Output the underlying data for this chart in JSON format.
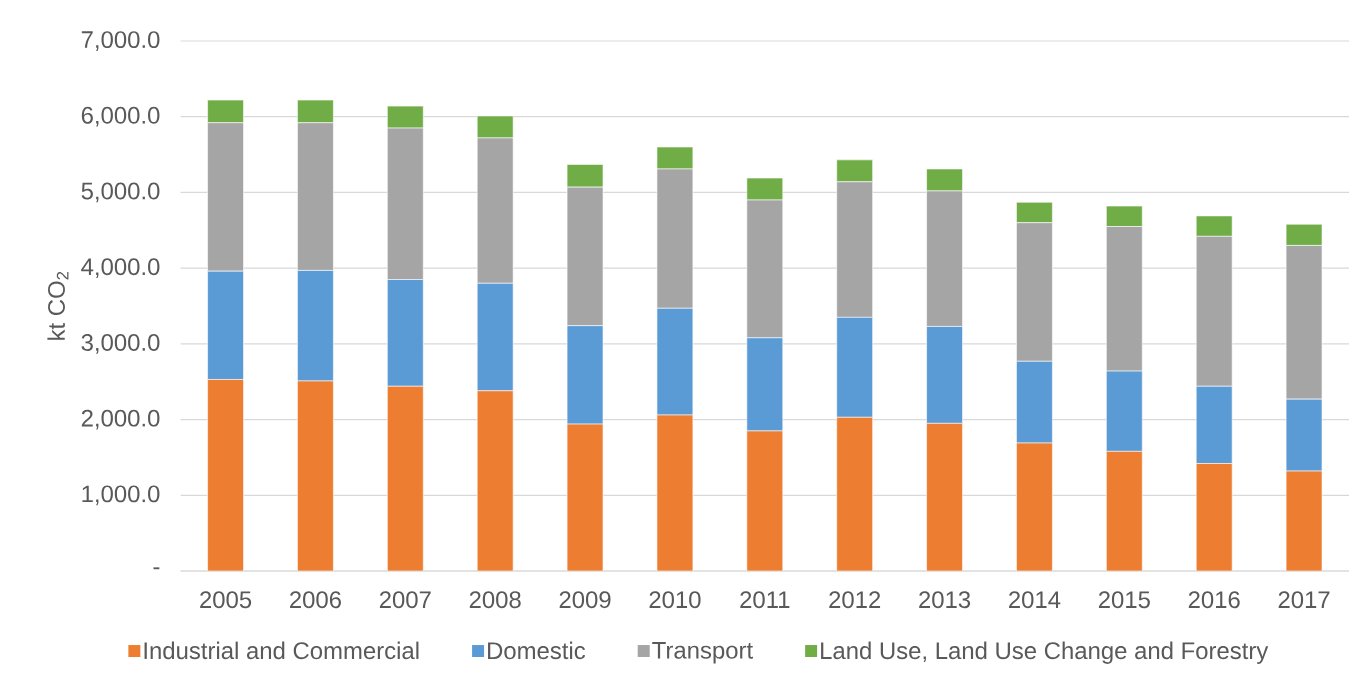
{
  "chart_data": {
    "type": "bar",
    "stacked": true,
    "ylabel": "kt CO$_{2}$",
    "categories": [
      "2005",
      "2006",
      "2007",
      "2008",
      "2009",
      "2010",
      "2011",
      "2012",
      "2013",
      "2014",
      "2015",
      "2016",
      "2017"
    ],
    "series": [
      {
        "name": "Industrial and Commercial",
        "color": "#ed7d31",
        "values": [
          2530,
          2510,
          2440,
          2380,
          1940,
          2060,
          1850,
          2030,
          1950,
          1690,
          1580,
          1420,
          1320
        ]
      },
      {
        "name": "Domestic",
        "color": "#5b9bd5",
        "values": [
          1430,
          1460,
          1410,
          1420,
          1300,
          1410,
          1230,
          1320,
          1280,
          1080,
          1060,
          1020,
          950
        ]
      },
      {
        "name": "Transport",
        "color": "#a5a5a5",
        "values": [
          1960,
          1950,
          2000,
          1920,
          1830,
          1840,
          1820,
          1790,
          1790,
          1830,
          1910,
          1980,
          2030
        ]
      },
      {
        "name": "Land Use, Land Use Change and Forestry",
        "color": "#70ad47",
        "values": [
          300,
          300,
          290,
          290,
          300,
          290,
          290,
          290,
          290,
          270,
          270,
          270,
          280
        ]
      }
    ],
    "ylim": [
      0,
      7000
    ],
    "yticks": [
      {
        "value": 0,
        "label": "-"
      },
      {
        "value": 1000,
        "label": "1,000.0"
      },
      {
        "value": 2000,
        "label": "2,000.0"
      },
      {
        "value": 3000,
        "label": "3,000.0"
      },
      {
        "value": 4000,
        "label": "4,000.0"
      },
      {
        "value": 5000,
        "label": "5,000.0"
      },
      {
        "value": 6000,
        "label": "6,000.0"
      },
      {
        "value": 7000,
        "label": "7,000.0"
      }
    ],
    "grid": "y",
    "legend": "bottom"
  }
}
